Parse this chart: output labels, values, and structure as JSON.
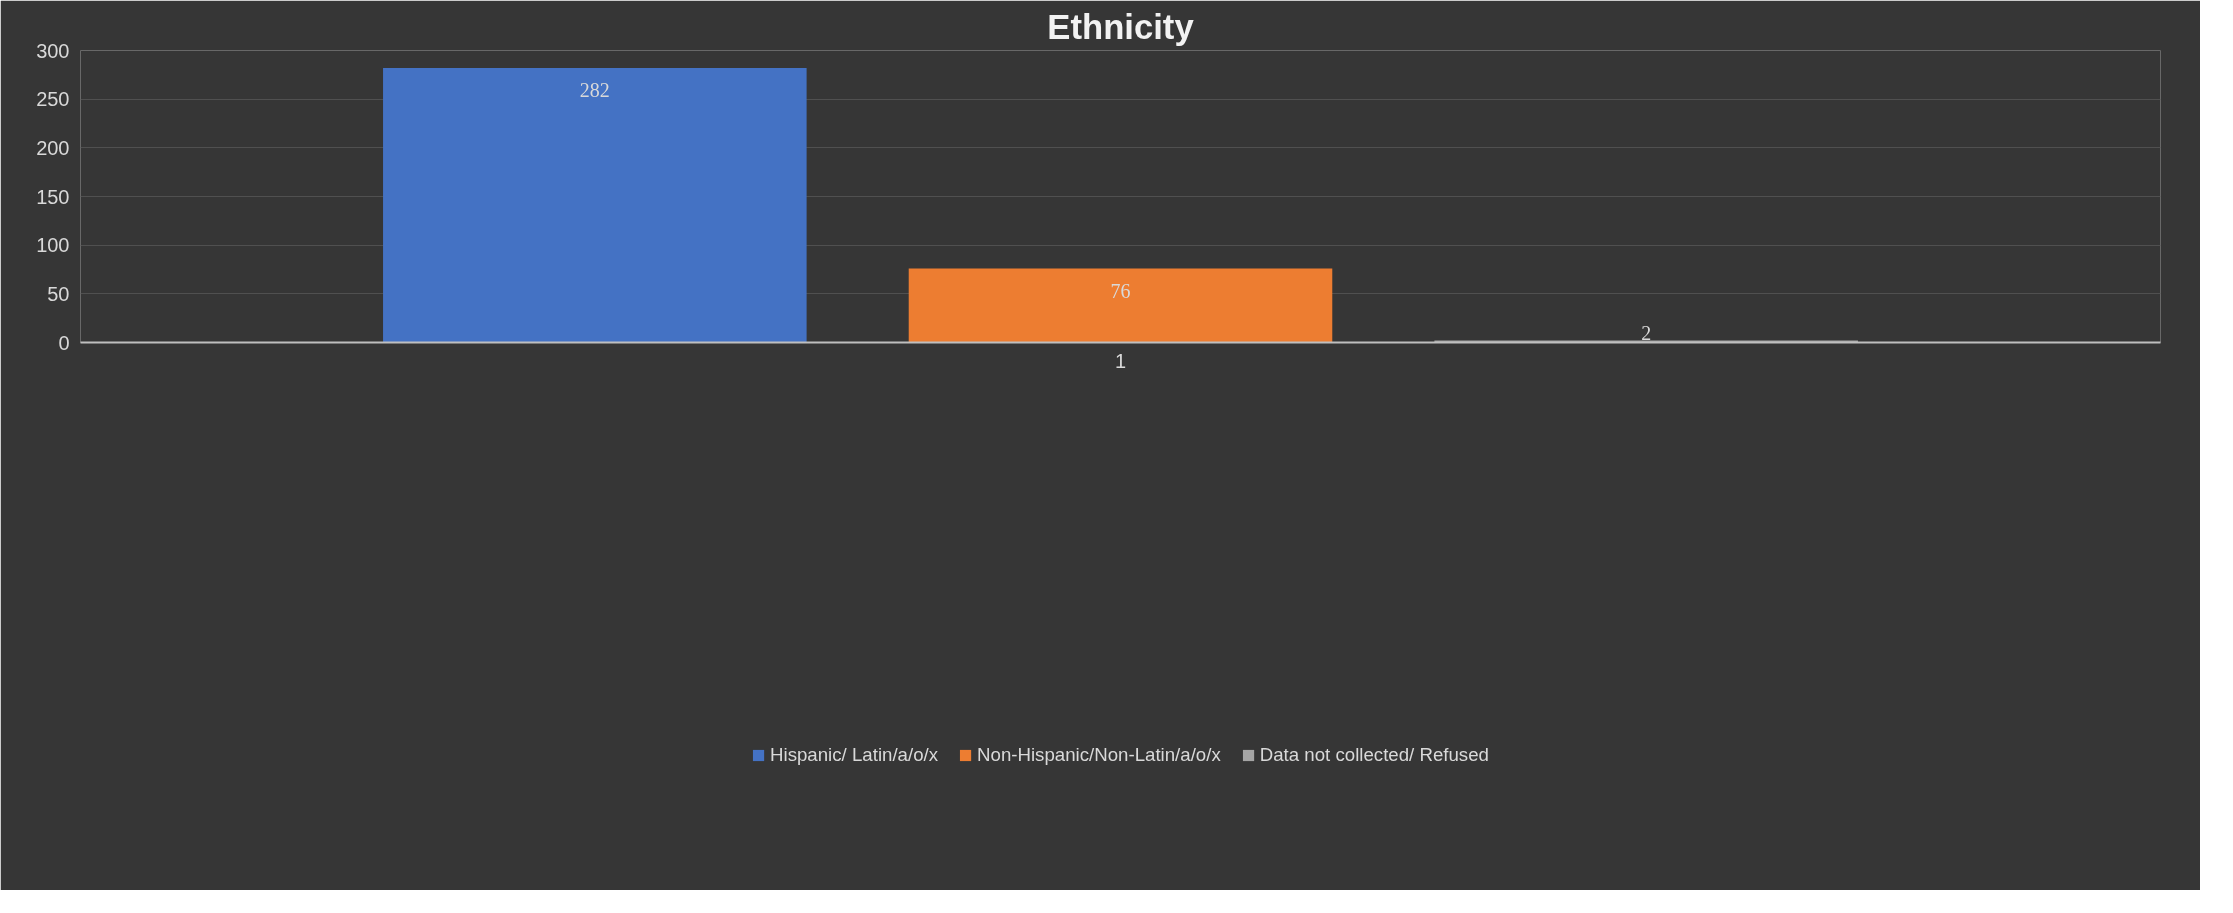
{
  "chart_data": {
    "type": "bar",
    "title": "Ethnicity",
    "categories": [
      "1"
    ],
    "series": [
      {
        "name": "Hispanic/ Latin/a/o/x",
        "color": "#4472c4",
        "values": [
          282
        ]
      },
      {
        "name": "Non-Hispanic/Non-Latin/a/o/x",
        "color": "#ed7d31",
        "values": [
          76
        ]
      },
      {
        "name": "Data not collected/ Refused",
        "color": "#a5a5a5",
        "values": [
          2
        ]
      }
    ],
    "ylim": [
      0,
      300
    ],
    "yticks": [
      0,
      50,
      100,
      150,
      200,
      250,
      300
    ],
    "grid": "y",
    "legend": "bottom",
    "data_labels": true
  }
}
